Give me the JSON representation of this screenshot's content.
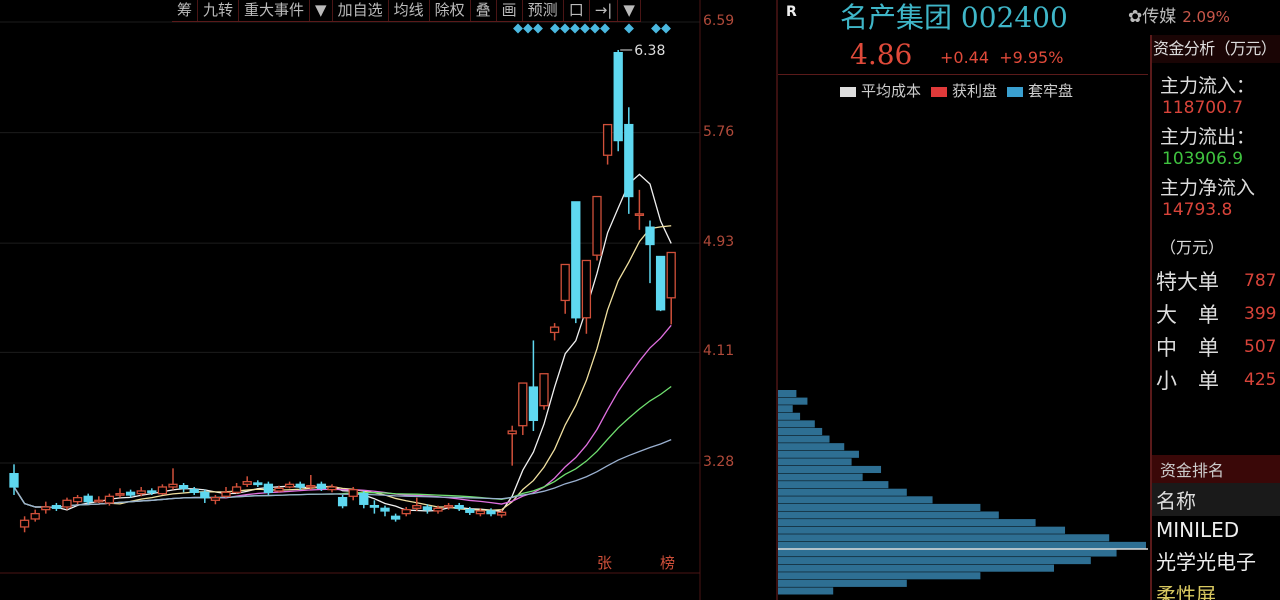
{
  "toolbar": [
    "筹",
    "九转",
    "重大事件",
    "▼",
    "加自选",
    "均线",
    "除权",
    "叠",
    "画",
    "预测",
    "口",
    "→|",
    "▼"
  ],
  "stock": {
    "logo": "R",
    "name": "名产集团",
    "code": "002400",
    "sector": "传媒",
    "sector_change": "2.09%",
    "price": "4.86",
    "change": "+0.44",
    "change_pct": "+9.95%"
  },
  "legend": [
    {
      "label": "平均成本",
      "color": "#dddddd"
    },
    {
      "label": "获利盘",
      "color": "#e03a3a"
    },
    {
      "label": "套牢盘",
      "color": "#3aa0d0"
    }
  ],
  "fund": {
    "title": "资金分析（万元）",
    "in_label": "主力流入：",
    "in_value": "118700.7",
    "out_label": "主力流出：",
    "out_value": "103906.9",
    "net_label": "主力净流入",
    "net_value": "14793.8",
    "unit": "（万元）",
    "orders": [
      {
        "label": "特大单",
        "value": "787"
      },
      {
        "label": "大　单",
        "value": "399"
      },
      {
        "label": "中　单",
        "value": "507"
      },
      {
        "label": "小　单",
        "value": "425"
      }
    ],
    "rank_title": "资金排名",
    "rank_header": "名称",
    "rank_items": [
      "MINILED",
      "光学光电子",
      "柔性屏"
    ]
  },
  "chart_data": {
    "type": "candlestick",
    "y_ticks": [
      "6.59",
      "5.76",
      "4.93",
      "4.11",
      "3.28"
    ],
    "ylim": [
      2.55,
      6.59
    ],
    "max_label": "6.38",
    "markers": [
      "张",
      "榜"
    ],
    "up_color": "#d0503a",
    "down_color": "#5fd8f0",
    "ohlc": [
      [
        3.2,
        3.1,
        3.27,
        3.04
      ],
      [
        2.8,
        2.85,
        2.88,
        2.76
      ],
      [
        2.86,
        2.9,
        2.93,
        2.84
      ],
      [
        2.93,
        2.95,
        2.99,
        2.9
      ],
      [
        2.96,
        2.94,
        2.98,
        2.92
      ],
      [
        2.95,
        3.0,
        3.02,
        2.93
      ],
      [
        2.99,
        3.02,
        3.04,
        2.97
      ],
      [
        3.03,
        2.99,
        3.05,
        2.97
      ],
      [
        3.0,
        3.0,
        3.03,
        2.98
      ],
      [
        2.98,
        3.03,
        3.05,
        2.96
      ],
      [
        3.04,
        3.05,
        3.09,
        3.02
      ],
      [
        3.06,
        3.04,
        3.08,
        3.02
      ],
      [
        3.05,
        3.07,
        3.1,
        3.03
      ],
      [
        3.07,
        3.06,
        3.09,
        3.04
      ],
      [
        3.05,
        3.1,
        3.12,
        3.04
      ],
      [
        3.1,
        3.12,
        3.24,
        3.08
      ],
      [
        3.11,
        3.09,
        3.13,
        3.06
      ],
      [
        3.08,
        3.06,
        3.1,
        3.04
      ],
      [
        3.06,
        3.02,
        3.08,
        2.98
      ],
      [
        3.0,
        3.02,
        3.04,
        2.97
      ],
      [
        3.03,
        3.06,
        3.1,
        3.02
      ],
      [
        3.06,
        3.1,
        3.13,
        3.05
      ],
      [
        3.12,
        3.14,
        3.18,
        3.1
      ],
      [
        3.13,
        3.12,
        3.15,
        3.1
      ],
      [
        3.12,
        3.06,
        3.14,
        3.04
      ],
      [
        3.07,
        3.09,
        3.11,
        3.06
      ],
      [
        3.1,
        3.12,
        3.14,
        3.09
      ],
      [
        3.12,
        3.1,
        3.14,
        3.08
      ],
      [
        3.1,
        3.11,
        3.19,
        3.08
      ],
      [
        3.12,
        3.09,
        3.14,
        3.07
      ],
      [
        3.08,
        3.1,
        3.12,
        3.06
      ],
      [
        3.02,
        2.96,
        3.04,
        2.94
      ],
      [
        3.03,
        3.08,
        3.1,
        3.0
      ],
      [
        3.05,
        2.97,
        3.07,
        2.94
      ],
      [
        2.96,
        2.95,
        3.0,
        2.9
      ],
      [
        2.94,
        2.92,
        2.96,
        2.88
      ],
      [
        2.88,
        2.86,
        2.9,
        2.84
      ],
      [
        2.9,
        2.93,
        2.95,
        2.88
      ],
      [
        2.94,
        2.96,
        3.02,
        2.92
      ],
      [
        2.95,
        2.93,
        2.97,
        2.9
      ],
      [
        2.92,
        2.94,
        2.96,
        2.9
      ],
      [
        2.95,
        2.96,
        2.98,
        2.93
      ],
      [
        2.96,
        2.94,
        2.98,
        2.92
      ],
      [
        2.93,
        2.91,
        2.95,
        2.89
      ],
      [
        2.9,
        2.92,
        2.94,
        2.88
      ],
      [
        2.92,
        2.9,
        2.94,
        2.88
      ],
      [
        2.89,
        2.91,
        2.93,
        2.87
      ],
      [
        3.5,
        3.52,
        3.56,
        3.26
      ],
      [
        3.56,
        3.88,
        3.88,
        3.49
      ],
      [
        3.85,
        3.6,
        4.2,
        3.52
      ],
      [
        3.71,
        3.95,
        3.95,
        3.68
      ],
      [
        4.26,
        4.3,
        4.33,
        4.2
      ],
      [
        4.5,
        4.77,
        4.77,
        4.4
      ],
      [
        5.24,
        4.37,
        5.24,
        4.33
      ],
      [
        4.37,
        4.8,
        4.8,
        4.25
      ],
      [
        4.84,
        5.28,
        5.28,
        4.8
      ],
      [
        5.59,
        5.82,
        5.82,
        5.52
      ],
      [
        6.36,
        5.7,
        6.38,
        5.62
      ],
      [
        5.82,
        5.28,
        5.95,
        5.15
      ],
      [
        5.14,
        5.15,
        5.33,
        5.03
      ],
      [
        5.05,
        4.92,
        5.1,
        4.63
      ],
      [
        4.83,
        4.43,
        4.83,
        4.42
      ],
      [
        4.52,
        4.86,
        4.86,
        4.32
      ]
    ],
    "ma": [
      {
        "period": 5,
        "color": "#f0f0f0"
      },
      {
        "period": 10,
        "color": "#f0e0a0"
      },
      {
        "period": 20,
        "color": "#e070e0"
      },
      {
        "period": 30,
        "color": "#70e070"
      },
      {
        "period": 60,
        "color": "#9ab0d0"
      }
    ]
  },
  "chip_distribution": [
    0.05,
    0.08,
    0.04,
    0.06,
    0.1,
    0.12,
    0.14,
    0.18,
    0.22,
    0.2,
    0.28,
    0.23,
    0.3,
    0.35,
    0.42,
    0.55,
    0.6,
    0.7,
    0.78,
    0.9,
    1.0,
    0.92,
    0.85,
    0.75,
    0.55,
    0.35,
    0.15
  ]
}
